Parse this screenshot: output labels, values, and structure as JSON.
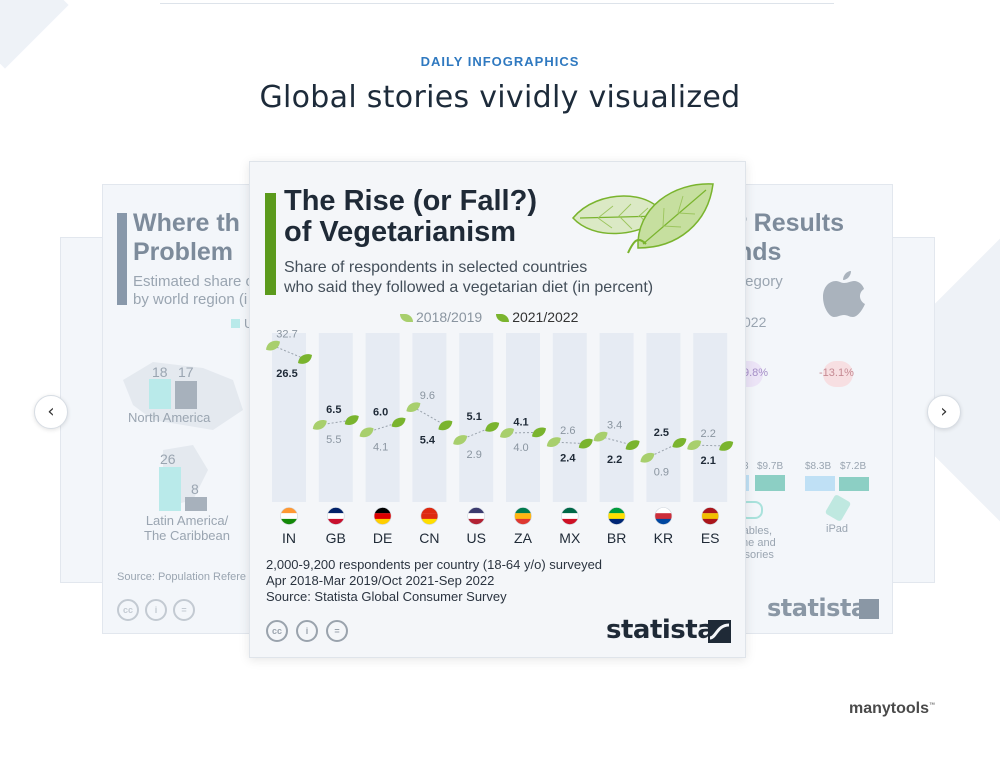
{
  "header": {
    "eyebrow": "DAILY INFOGRAPHICS",
    "headline": "Global stories vividly visualized"
  },
  "left_card": {
    "title_line1": "Where th",
    "title_line2": "Problem",
    "sub_line1": "Estimated share o",
    "sub_line2": "by world region (i",
    "legend_fragment": "U",
    "bars": [
      {
        "region": "North America",
        "values": [
          "18",
          "17"
        ]
      },
      {
        "region": "Latin America/ The Caribbean",
        "values": [
          "26",
          "8"
        ]
      }
    ],
    "source": "Source: Population Refere"
  },
  "right_card": {
    "title_line1": "r Results",
    "title_line2": "nds",
    "sub_line1": "tegory",
    "year": "022",
    "badge1": "9.8%",
    "badge2": "-13.1%",
    "values": [
      "3",
      "$9.7B",
      "$8.3B",
      "$7.2B"
    ],
    "cat1": "rables, me and ssories",
    "cat2": "iPad",
    "brand": "statista"
  },
  "main_card": {
    "title_line1": "The Rise (or Fall?)",
    "title_line2": "of Vegetarianism",
    "subtitle_line1": "Share of respondents in selected countries",
    "subtitle_line2": "who said they followed a vegetarian diet (in percent)",
    "legend_2018": "2018/2019",
    "legend_2021": "2021/2022",
    "footnote1": "2,000-9,200 respondents per country (18-64 y/o) surveyed",
    "footnote2": "Apr 2018-Mar 2019/Oct 2021-Sep 2022",
    "footnote3": "Source: Statista Global Consumer Survey",
    "brand": "statista",
    "cc_labels": [
      "cc",
      "i",
      "="
    ]
  },
  "chart_data": {
    "type": "line",
    "title": "The Rise (or Fall?) of Vegetarianism",
    "subtitle": "Share of respondents in selected countries who said they followed a vegetarian diet (in percent)",
    "categories": [
      "IN",
      "GB",
      "DE",
      "CN",
      "US",
      "ZA",
      "MX",
      "BR",
      "KR",
      "ES"
    ],
    "series": [
      {
        "name": "2018/2019",
        "values": [
          32.7,
          5.5,
          4.1,
          9.6,
          2.9,
          4.0,
          2.6,
          3.4,
          0.9,
          2.2
        ]
      },
      {
        "name": "2021/2022",
        "values": [
          26.5,
          6.5,
          6.0,
          5.4,
          5.1,
          4.1,
          2.4,
          2.2,
          2.5,
          2.1
        ]
      }
    ],
    "labels_2018": [
      "32.7",
      "5.5",
      "4.1",
      "9.6",
      "2.9",
      "4.0",
      "2.6",
      "3.4",
      "0.9",
      "2.2"
    ],
    "labels_2021": [
      "26.5",
      "6.5",
      "6.0",
      "5.4",
      "5.1",
      "4.1",
      "2.4",
      "2.2",
      "2.5",
      "2.1"
    ],
    "flags": {
      "IN": [
        "#ff9933",
        "#ffffff",
        "#138808"
      ],
      "GB": [
        "#012169",
        "#ffffff",
        "#c8102e"
      ],
      "DE": [
        "#000000",
        "#dd0000",
        "#ffce00"
      ],
      "CN": [
        "#de2910",
        "#de2910",
        "#ffde00"
      ],
      "US": [
        "#3c3b6e",
        "#ffffff",
        "#b22234"
      ],
      "ZA": [
        "#007a4d",
        "#ffb612",
        "#de3831"
      ],
      "MX": [
        "#006847",
        "#ffffff",
        "#ce1126"
      ],
      "BR": [
        "#009c3b",
        "#ffdf00",
        "#002776"
      ],
      "KR": [
        "#ffffff",
        "#cd2e3a",
        "#0047a0"
      ],
      "ES": [
        "#aa151b",
        "#f1bf00",
        "#aa151b"
      ]
    },
    "colors": {
      "leaf_2018": "#a8cf6d",
      "leaf_2021": "#7ab42e",
      "column": "#e6ebf3"
    }
  },
  "nav": {
    "prev": "‹",
    "next": "›"
  },
  "footer": {
    "brand": "manytools",
    "tm": "™"
  }
}
